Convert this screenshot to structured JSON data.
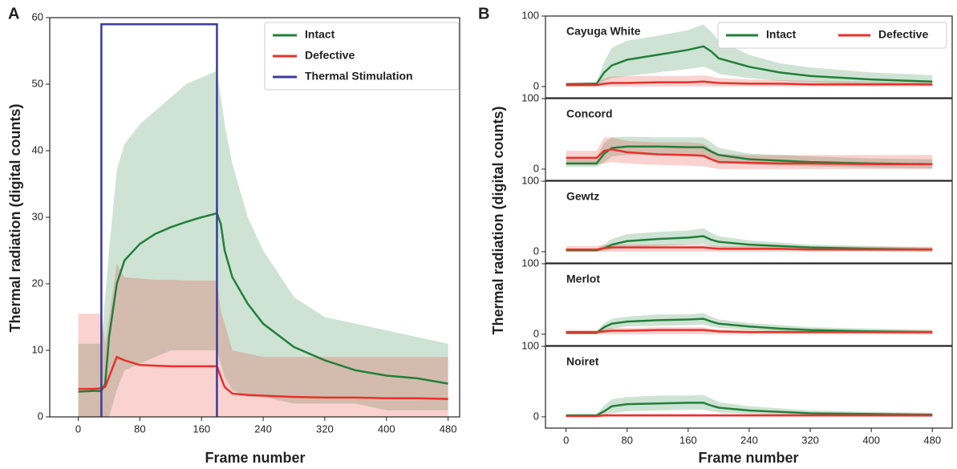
{
  "chart_data": [
    {
      "type": "line",
      "panel_label": "A",
      "xlabel": "Frame number",
      "ylabel": "Thermal radiation (digital counts)",
      "x": [
        0,
        20,
        30,
        35,
        40,
        50,
        60,
        80,
        100,
        120,
        140,
        160,
        180,
        185,
        190,
        200,
        220,
        240,
        280,
        320,
        360,
        400,
        440,
        480
      ],
      "xlim": [
        -37,
        495
      ],
      "ylim": [
        0,
        60
      ],
      "xticks": [
        0,
        80,
        160,
        240,
        320,
        400,
        480
      ],
      "yticks": [
        0,
        10,
        20,
        30,
        40,
        50,
        60
      ],
      "legend": "upper right",
      "series": [
        {
          "name": "Intact",
          "color": "#22803a",
          "values": [
            3.8,
            3.9,
            3.9,
            5,
            12,
            20,
            23.5,
            26,
            27.5,
            28.5,
            29.3,
            30,
            30.6,
            29,
            25,
            21,
            17,
            14,
            10.5,
            8.5,
            7,
            6.2,
            5.8,
            5
          ],
          "upper": [
            11,
            11,
            11,
            18,
            25,
            37,
            41,
            44,
            46,
            48,
            50,
            51,
            52,
            48,
            44,
            38,
            30,
            25,
            18,
            15,
            14,
            13,
            12,
            11
          ],
          "lower": [
            0,
            0,
            0,
            0,
            0,
            4,
            7,
            8,
            9,
            10,
            10,
            10,
            10,
            8,
            6,
            4,
            3,
            3,
            2,
            2,
            2,
            1,
            1,
            1
          ]
        },
        {
          "name": "Defective",
          "color": "#e8312a",
          "values": [
            4.2,
            4.2,
            4.3,
            4.5,
            6,
            9,
            8.5,
            7.8,
            7.7,
            7.6,
            7.6,
            7.6,
            7.6,
            6,
            4.5,
            3.5,
            3.3,
            3.2,
            3,
            2.9,
            2.9,
            2.8,
            2.8,
            2.7
          ],
          "upper": [
            15.5,
            15.5,
            15.5,
            11,
            15,
            23,
            21,
            20.8,
            20.6,
            20.6,
            20.5,
            20.5,
            20.5,
            16,
            14,
            10,
            9.5,
            9,
            9,
            9,
            9,
            9,
            9,
            9
          ],
          "lower": [
            0,
            0,
            0,
            0,
            0,
            0,
            0,
            0,
            0,
            0,
            0,
            0,
            0,
            0,
            0,
            0,
            0,
            0,
            0,
            0,
            0,
            0,
            0,
            0
          ]
        },
        {
          "name": "Thermal Stimulation",
          "color": "#3b3b9c",
          "x": [
            30,
            30,
            180,
            180
          ],
          "values": [
            0,
            59,
            59,
            0
          ]
        }
      ]
    },
    {
      "type": "line",
      "panel_label": "B",
      "xlabel": "Frame number",
      "ylabel": "Thermal radiation (digital counts)",
      "x": [
        0,
        40,
        50,
        60,
        80,
        120,
        160,
        180,
        190,
        200,
        240,
        280,
        320,
        400,
        480
      ],
      "xlim": [
        -27,
        506
      ],
      "xticks": [
        0,
        80,
        160,
        240,
        320,
        400,
        480
      ],
      "legend": "upper right",
      "subplots": [
        {
          "title": "Cayuga White",
          "ylim": [
            -16,
            100
          ],
          "yticks": [
            0,
            100
          ],
          "series": [
            {
              "name": "Intact",
              "color": "#22803a",
              "values": [
                3,
                4,
                20,
                30,
                38,
                45,
                52,
                57,
                50,
                40,
                28,
                20,
                15,
                10,
                7
              ],
              "upper": [
                5,
                6,
                35,
                55,
                65,
                72,
                80,
                88,
                78,
                65,
                45,
                33,
                27,
                20,
                16
              ],
              "lower": [
                0,
                1,
                8,
                12,
                15,
                20,
                25,
                28,
                24,
                18,
                12,
                8,
                6,
                3,
                1
              ]
            },
            {
              "name": "Defective",
              "color": "#e8312a",
              "values": [
                2,
                2,
                4,
                5,
                5,
                6,
                6,
                7,
                6,
                5,
                4,
                4,
                3,
                3,
                3
              ],
              "upper": [
                6,
                6,
                12,
                14,
                15,
                15,
                15,
                16,
                14,
                12,
                10,
                9,
                8,
                7,
                6
              ],
              "lower": [
                0,
                0,
                0,
                0,
                0,
                0,
                0,
                0,
                0,
                0,
                0,
                0,
                0,
                0,
                0
              ]
            }
          ]
        },
        {
          "title": "Concord",
          "ylim": [
            -16,
            100
          ],
          "yticks": [
            0,
            100
          ],
          "series": [
            {
              "name": "Intact",
              "color": "#22803a",
              "values": [
                8,
                8,
                22,
                30,
                32,
                32,
                31,
                31,
                25,
                20,
                14,
                12,
                10,
                8,
                7
              ],
              "upper": [
                14,
                14,
                38,
                45,
                46,
                45,
                45,
                45,
                38,
                30,
                22,
                20,
                18,
                15,
                14
              ],
              "lower": [
                3,
                3,
                10,
                18,
                20,
                20,
                18,
                18,
                14,
                10,
                6,
                5,
                4,
                2,
                1
              ]
            },
            {
              "name": "Defective",
              "color": "#e8312a",
              "values": [
                16,
                16,
                26,
                28,
                24,
                21,
                20,
                19,
                14,
                10,
                9,
                8,
                8,
                7,
                7
              ],
              "upper": [
                26,
                26,
                45,
                45,
                40,
                38,
                38,
                36,
                28,
                22,
                20,
                20,
                20,
                20,
                20
              ],
              "lower": [
                6,
                6,
                8,
                10,
                8,
                6,
                5,
                4,
                2,
                0,
                0,
                0,
                0,
                0,
                0
              ]
            }
          ]
        },
        {
          "title": "Gewtz",
          "ylim": [
            -16,
            100
          ],
          "yticks": [
            0,
            100
          ],
          "series": [
            {
              "name": "Intact",
              "color": "#22803a",
              "values": [
                2,
                2,
                5,
                10,
                15,
                18,
                20,
                22,
                17,
                14,
                10,
                8,
                6,
                4,
                3
              ],
              "upper": [
                4,
                4,
                10,
                18,
                25,
                28,
                30,
                33,
                27,
                22,
                16,
                13,
                10,
                8,
                6
              ],
              "lower": [
                0,
                0,
                1,
                4,
                6,
                8,
                10,
                11,
                8,
                6,
                4,
                3,
                2,
                1,
                0
              ]
            },
            {
              "name": "Defective",
              "color": "#e8312a",
              "values": [
                3,
                3,
                5,
                6,
                6,
                6,
                6,
                6,
                5,
                4,
                4,
                4,
                3,
                3,
                3
              ],
              "upper": [
                8,
                8,
                10,
                10,
                10,
                10,
                10,
                10,
                9,
                8,
                8,
                8,
                7,
                7,
                7
              ],
              "lower": [
                0,
                0,
                0,
                0,
                0,
                0,
                0,
                0,
                0,
                0,
                0,
                0,
                0,
                0,
                0
              ]
            }
          ]
        },
        {
          "title": "Merlot",
          "ylim": [
            -16,
            100
          ],
          "yticks": [
            0,
            100
          ],
          "series": [
            {
              "name": "Intact",
              "color": "#22803a",
              "values": [
                2,
                2,
                10,
                15,
                18,
                20,
                21,
                22,
                18,
                15,
                11,
                8,
                6,
                4,
                3
              ],
              "upper": [
                4,
                4,
                16,
                22,
                25,
                28,
                28,
                30,
                25,
                21,
                16,
                13,
                10,
                8,
                6
              ],
              "lower": [
                0,
                0,
                4,
                8,
                11,
                12,
                13,
                14,
                11,
                9,
                6,
                4,
                3,
                1,
                0
              ]
            },
            {
              "name": "Defective",
              "color": "#e8312a",
              "values": [
                3,
                3,
                4,
                5,
                5,
                6,
                6,
                6,
                5,
                4,
                3,
                3,
                3,
                3,
                3
              ],
              "upper": [
                6,
                6,
                8,
                9,
                9,
                10,
                10,
                10,
                8,
                7,
                6,
                6,
                6,
                6,
                6
              ],
              "lower": [
                0,
                0,
                0,
                0,
                0,
                0,
                0,
                0,
                0,
                0,
                0,
                0,
                0,
                0,
                0
              ]
            }
          ]
        },
        {
          "title": "Noiret",
          "ylim": [
            -16,
            100
          ],
          "yticks": [
            0,
            100
          ],
          "series": [
            {
              "name": "Intact",
              "color": "#22803a",
              "values": [
                2,
                2,
                8,
                15,
                18,
                19,
                20,
                20,
                16,
                13,
                9,
                7,
                5,
                4,
                3
              ],
              "upper": [
                4,
                4,
                16,
                25,
                28,
                30,
                30,
                31,
                26,
                21,
                15,
                12,
                9,
                7,
                6
              ],
              "lower": [
                0,
                0,
                2,
                5,
                8,
                9,
                10,
                10,
                8,
                6,
                4,
                3,
                2,
                1,
                0
              ]
            },
            {
              "name": "Defective",
              "color": "#e8312a",
              "values": [
                1,
                1,
                2,
                2,
                2,
                2,
                2,
                2,
                2,
                2,
                2,
                2,
                2,
                2,
                2
              ],
              "upper": [
                3,
                3,
                4,
                4,
                4,
                4,
                4,
                4,
                4,
                4,
                4,
                4,
                4,
                4,
                4
              ],
              "lower": [
                0,
                0,
                0,
                0,
                0,
                0,
                0,
                0,
                0,
                0,
                0,
                0,
                0,
                0,
                0
              ]
            }
          ]
        }
      ]
    }
  ]
}
